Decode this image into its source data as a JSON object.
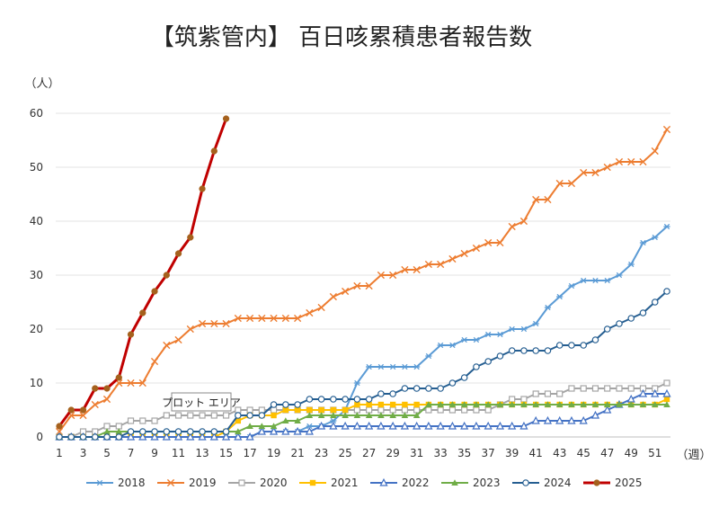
{
  "chart_data": {
    "type": "line",
    "title": "【筑紫管内】 百日咳累積患者報告数",
    "ylabel": "（人）",
    "xlabel": "（週）",
    "ylim": [
      0,
      60
    ],
    "yticks": [
      "0",
      "10",
      "20",
      "30",
      "40",
      "50",
      "60"
    ],
    "xticks": [
      "1",
      "3",
      "5",
      "7",
      "9",
      "11",
      "13",
      "15",
      "17",
      "19",
      "21",
      "23",
      "25",
      "27",
      "29",
      "31",
      "33",
      "35",
      "37",
      "39",
      "41",
      "43",
      "45",
      "47",
      "49",
      "51"
    ],
    "grid": true,
    "legend_position": "bottom",
    "annotation": "プロット エリア",
    "series": [
      {
        "name": "2018",
        "color": "#5b9bd5",
        "marker": "star",
        "values": [
          0,
          0,
          0,
          0,
          0,
          0,
          0,
          0,
          0,
          0,
          0,
          0,
          0,
          0,
          0,
          0,
          0,
          1,
          1,
          1,
          1,
          2,
          2,
          3,
          5,
          10,
          13,
          13,
          13,
          13,
          13,
          15,
          17,
          17,
          18,
          18,
          19,
          19,
          20,
          20,
          21,
          24,
          26,
          28,
          29,
          29,
          29,
          30,
          32,
          36,
          37,
          39
        ]
      },
      {
        "name": "2019",
        "color": "#ed7d31",
        "marker": "x",
        "values": [
          1,
          4,
          4,
          6,
          7,
          10,
          10,
          10,
          14,
          17,
          18,
          20,
          21,
          21,
          21,
          22,
          22,
          22,
          22,
          22,
          22,
          23,
          24,
          26,
          27,
          28,
          28,
          30,
          30,
          31,
          31,
          32,
          32,
          33,
          34,
          35,
          36,
          36,
          39,
          40,
          44,
          44,
          47,
          47,
          49,
          49,
          50,
          51,
          51,
          51,
          53,
          57
        ]
      },
      {
        "name": "2020",
        "color": "#a5a5a5",
        "marker": "square-open",
        "values": [
          0,
          0,
          1,
          1,
          2,
          2,
          3,
          3,
          3,
          4,
          4,
          4,
          4,
          4,
          4,
          5,
          5,
          5,
          5,
          5,
          5,
          5,
          5,
          5,
          5,
          5,
          5,
          5,
          5,
          5,
          5,
          5,
          5,
          5,
          5,
          5,
          5,
          6,
          7,
          7,
          8,
          8,
          8,
          9,
          9,
          9,
          9,
          9,
          9,
          9,
          9,
          10
        ]
      },
      {
        "name": "2021",
        "color": "#ffc000",
        "marker": "square",
        "values": [
          0,
          0,
          0,
          0,
          0,
          0,
          0,
          0,
          0,
          0,
          0,
          0,
          0,
          0,
          1,
          3,
          4,
          4,
          4,
          5,
          5,
          5,
          5,
          5,
          5,
          6,
          6,
          6,
          6,
          6,
          6,
          6,
          6,
          6,
          6,
          6,
          6,
          6,
          6,
          6,
          6,
          6,
          6,
          6,
          6,
          6,
          6,
          6,
          6,
          6,
          6,
          7
        ]
      },
      {
        "name": "2022",
        "color": "#4472c4",
        "marker": "triangle-open",
        "values": [
          0,
          0,
          0,
          0,
          0,
          0,
          0,
          0,
          0,
          0,
          0,
          0,
          0,
          0,
          0,
          0,
          0,
          1,
          1,
          1,
          1,
          1,
          2,
          2,
          2,
          2,
          2,
          2,
          2,
          2,
          2,
          2,
          2,
          2,
          2,
          2,
          2,
          2,
          2,
          2,
          3,
          3,
          3,
          3,
          3,
          4,
          5,
          6,
          7,
          8,
          8,
          8
        ]
      },
      {
        "name": "2023",
        "color": "#70ad47",
        "marker": "triangle",
        "values": [
          0,
          0,
          0,
          0,
          1,
          1,
          1,
          1,
          1,
          1,
          1,
          1,
          1,
          1,
          1,
          1,
          2,
          2,
          2,
          3,
          3,
          4,
          4,
          4,
          4,
          4,
          4,
          4,
          4,
          4,
          4,
          6,
          6,
          6,
          6,
          6,
          6,
          6,
          6,
          6,
          6,
          6,
          6,
          6,
          6,
          6,
          6,
          6,
          6,
          6,
          6,
          6
        ]
      },
      {
        "name": "2024",
        "color": "#255e91",
        "marker": "circle-open",
        "values": [
          0,
          0,
          0,
          0,
          0,
          0,
          1,
          1,
          1,
          1,
          1,
          1,
          1,
          1,
          1,
          4,
          4,
          4,
          6,
          6,
          6,
          7,
          7,
          7,
          7,
          7,
          7,
          8,
          8,
          9,
          9,
          9,
          9,
          10,
          11,
          13,
          14,
          15,
          16,
          16,
          16,
          16,
          17,
          17,
          17,
          18,
          20,
          21,
          22,
          23,
          25,
          27
        ]
      },
      {
        "name": "2025",
        "color": "#c00000",
        "marker": "circle-filled",
        "marker_color": "#a5611d",
        "values": [
          2,
          5,
          5,
          9,
          9,
          11,
          19,
          23,
          27,
          30,
          34,
          37,
          46,
          53,
          59
        ]
      }
    ]
  }
}
